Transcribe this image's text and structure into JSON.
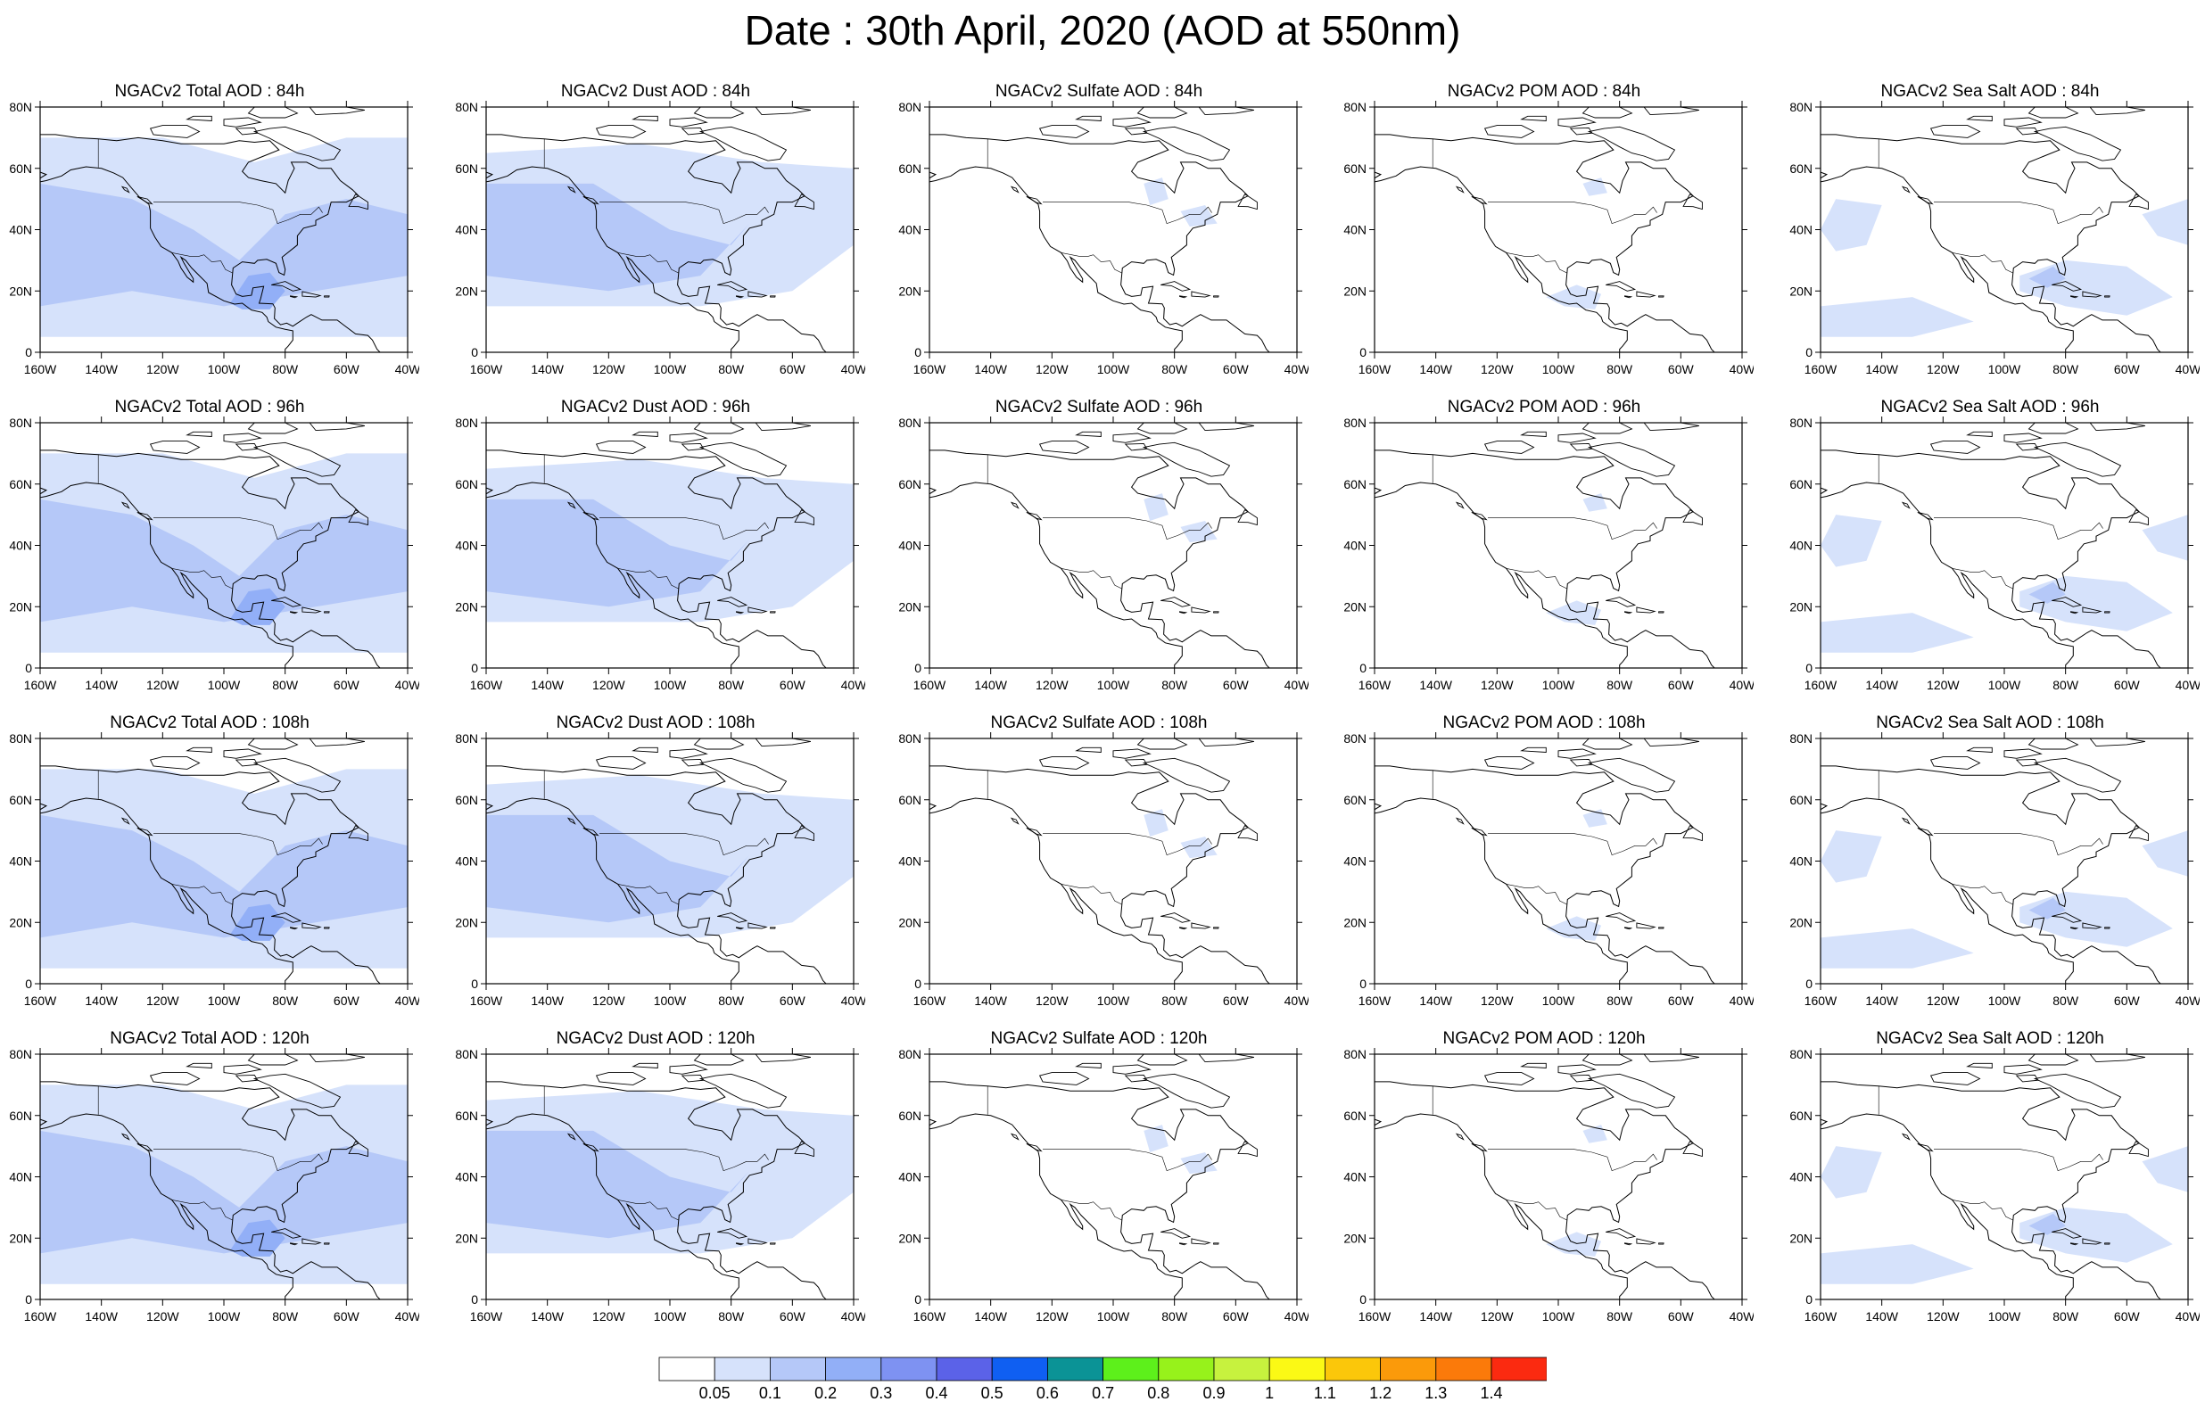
{
  "title": "Date : 30th April, 2020 (AOD at 550nm)",
  "columns": [
    {
      "key": "total",
      "label": "NGACv2 Total AOD"
    },
    {
      "key": "dust",
      "label": "NGACv2 Dust AOD"
    },
    {
      "key": "sulfate",
      "label": "NGACv2 Sulfate AOD"
    },
    {
      "key": "pom",
      "label": "NGACv2 POM AOD"
    },
    {
      "key": "seasalt",
      "label": "NGACv2 Sea Salt AOD"
    }
  ],
  "panels": [
    {
      "title": "NGACv2 Total AOD : 84h",
      "field": "total"
    },
    {
      "title": "NGACv2 Dust AOD : 84h",
      "field": "dust"
    },
    {
      "title": "NGACv2 Sulfate AOD : 84h",
      "field": "sulfate"
    },
    {
      "title": "NGACv2 POM AOD : 84h",
      "field": "pom"
    },
    {
      "title": "NGACv2 Sea Salt AOD : 84h",
      "field": "seasalt"
    },
    {
      "title": "NGACv2 Total AOD : 96h",
      "field": "total"
    },
    {
      "title": "NGACv2 Dust AOD : 96h",
      "field": "dust"
    },
    {
      "title": "NGACv2 Sulfate AOD : 96h",
      "field": "sulfate"
    },
    {
      "title": "NGACv2 POM AOD : 96h",
      "field": "pom"
    },
    {
      "title": "NGACv2 Sea Salt AOD : 96h",
      "field": "seasalt"
    },
    {
      "title": "NGACv2 Total AOD : 108h",
      "field": "total"
    },
    {
      "title": "NGACv2 Dust AOD : 108h",
      "field": "dust"
    },
    {
      "title": "NGACv2 Sulfate AOD : 108h",
      "field": "sulfate"
    },
    {
      "title": "NGACv2 POM AOD : 108h",
      "field": "pom"
    },
    {
      "title": "NGACv2 Sea Salt AOD : 108h",
      "field": "seasalt"
    },
    {
      "title": "NGACv2 Total AOD : 120h",
      "field": "total"
    },
    {
      "title": "NGACv2 Dust AOD : 120h",
      "field": "dust"
    },
    {
      "title": "NGACv2 Sulfate AOD : 120h",
      "field": "sulfate"
    },
    {
      "title": "NGACv2 POM AOD : 120h",
      "field": "pom"
    },
    {
      "title": "NGACv2 Sea Salt  AOD : 120h",
      "field": "seasalt"
    }
  ],
  "axes": {
    "lat_ticks": [
      "80N",
      "60N",
      "40N",
      "20N",
      "0"
    ],
    "lon_ticks": [
      "160W",
      "140W",
      "120W",
      "100W",
      "80W",
      "60W",
      "40W"
    ],
    "lat_range": [
      0,
      80
    ],
    "lon_range": [
      -160,
      -40
    ]
  },
  "colorbar": {
    "colors": [
      "#ffffff",
      "#d6e2fb",
      "#b5c8f8",
      "#92aff7",
      "#7e92f2",
      "#5b62e8",
      "#0f5ff2",
      "#0b9396",
      "#5df01b",
      "#97f21b",
      "#c7f23e",
      "#fbf915",
      "#fbc70a",
      "#fb9a0a",
      "#fb7a0a",
      "#fb2a10"
    ],
    "labels": [
      "0.05",
      "0.1",
      "0.2",
      "0.3",
      "0.4",
      "0.5",
      "0.6",
      "0.7",
      "0.8",
      "0.9",
      "1",
      "1.1",
      "1.2",
      "1.3",
      "1.4"
    ]
  }
}
